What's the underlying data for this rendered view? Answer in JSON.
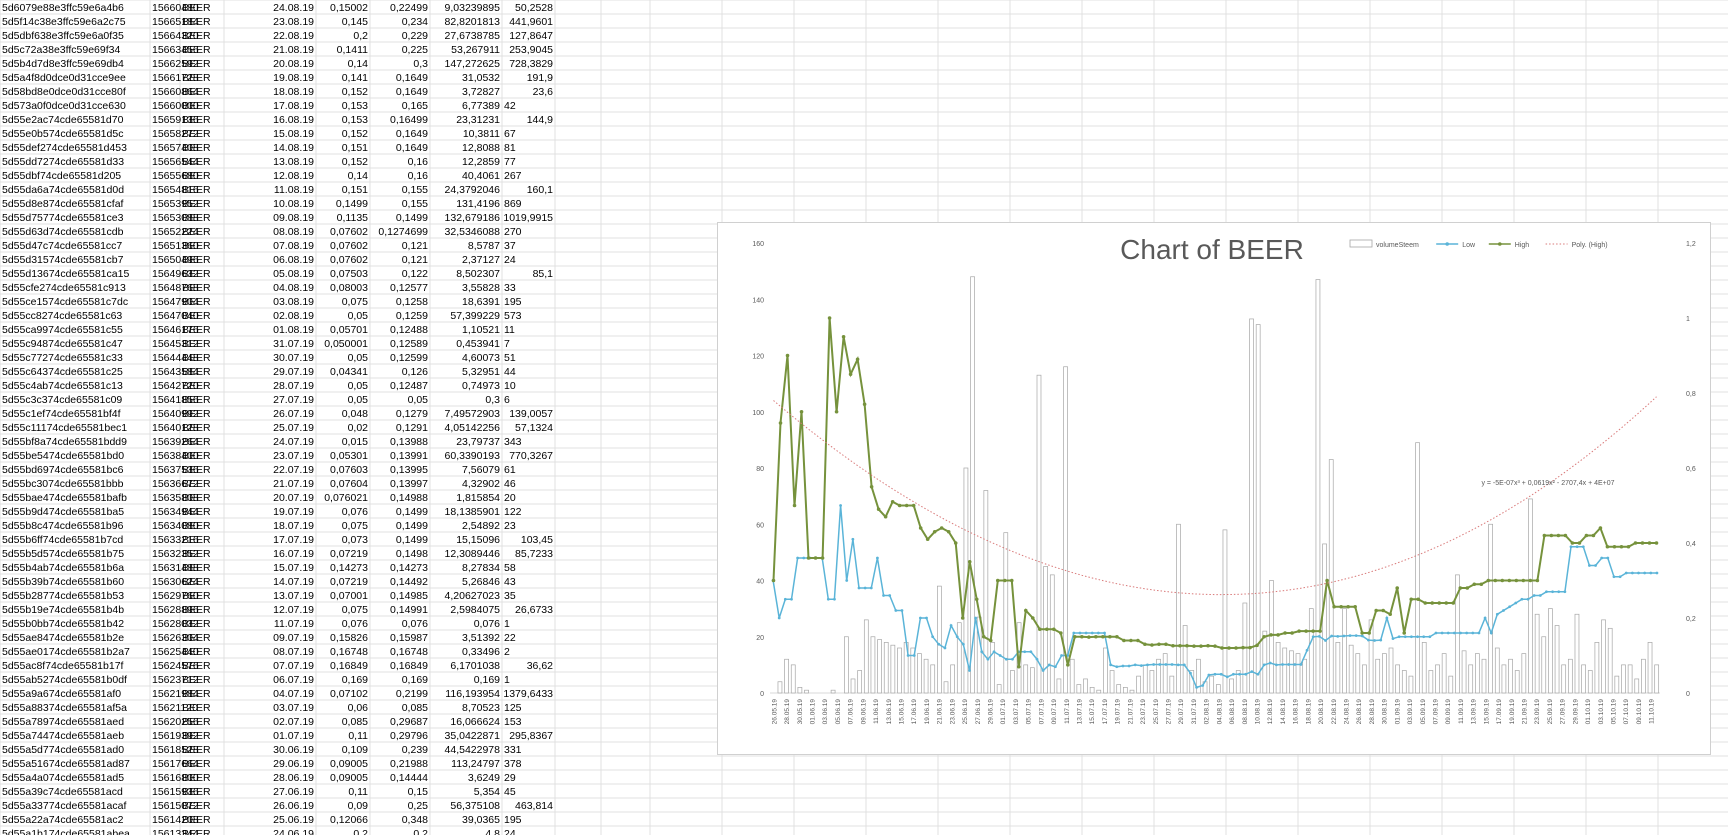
{
  "sheet": {
    "rows": [
      [
        "5d6079e88e3ffc59e6a4b6",
        "15660480",
        "BEER",
        "24.08.19",
        "0,15002",
        "0,22499",
        "9,03239895",
        "50,2528"
      ],
      [
        "5d5f14c38e3ffc59e6a2c75",
        "15665184",
        "BEER",
        "23.08.19",
        "0,145",
        "0,234",
        "82,8201813",
        "441,9601"
      ],
      [
        "5d5dbf638e3ffc59e6a0f35",
        "15664320",
        "BEER",
        "22.08.19",
        "0,2",
        "0,229",
        "27,6738785",
        "127,8647"
      ],
      [
        "5d5c72a38e3ffc59e69f34",
        "15663456",
        "BEER",
        "21.08.19",
        "0,1411",
        "0,225",
        "53,267911",
        "253,9045"
      ],
      [
        "5d5b4d7d8e3ffc59e69db4",
        "15662592",
        "BEER",
        "20.08.19",
        "0,14",
        "0,3",
        "147,272625",
        "728,3829"
      ],
      [
        "5d5a4f8d0dce0d31cce9ee",
        "15661728",
        "BEER",
        "19.08.19",
        "0,141",
        "0,1649",
        "31,0532",
        "191,9"
      ],
      [
        "5d58bd8e0dce0d31cce80f",
        "15660864",
        "BEER",
        "18.08.19",
        "0,152",
        "0,1649",
        "3,72827",
        "23,6"
      ],
      [
        "5d573a0f0dce0d31cce630",
        "15660000",
        "BEER",
        "17.08.19",
        "0,153",
        "0,165",
        "6,77389",
        "42"
      ],
      [
        "5d55e2ac74cde65581d70",
        "15659136",
        "BEER",
        "16.08.19",
        "0,153",
        "0,16499",
        "23,31231",
        "144,9"
      ],
      [
        "5d55e0b574cde65581d5c",
        "15658272",
        "BEER",
        "15.08.19",
        "0,152",
        "0,1649",
        "10,3811",
        "67"
      ],
      [
        "5d55def274cde65581d453",
        "15657408",
        "BEER",
        "14.08.19",
        "0,151",
        "0,1649",
        "12,8088",
        "81"
      ],
      [
        "5d55dd7274cde65581d33",
        "15656544",
        "BEER",
        "13.08.19",
        "0,152",
        "0,16",
        "12,2859",
        "77"
      ],
      [
        "5d55dbf74cde65581d205",
        "15655680",
        "BEER",
        "12.08.19",
        "0,14",
        "0,16",
        "40,4061",
        "267"
      ],
      [
        "5d55da6a74cde65581d0d",
        "15654816",
        "BEER",
        "11.08.19",
        "0,151",
        "0,155",
        "24,3792046",
        "160,1"
      ],
      [
        "5d55d8e874cde65581cfaf",
        "15653952",
        "BEER",
        "10.08.19",
        "0,1499",
        "0,155",
        "131,4196",
        "869"
      ],
      [
        "5d55d75774cde65581ce3",
        "15653088",
        "BEER",
        "09.08.19",
        "0,1135",
        "0,1499",
        "132,679186",
        "1019,9915"
      ],
      [
        "5d55d63d74cde65581cdb",
        "15652224",
        "BEER",
        "08.08.19",
        "0,07602",
        "0,1274699",
        "32,5346088",
        "270"
      ],
      [
        "5d55d47c74cde65581cc7",
        "15651360",
        "BEER",
        "07.08.19",
        "0,07602",
        "0,121",
        "8,5787",
        "37"
      ],
      [
        "5d55d31574cde65581cb7",
        "15650496",
        "BEER",
        "06.08.19",
        "0,07602",
        "0,121",
        "2,37127",
        "24"
      ],
      [
        "5d55d13674cde65581ca15",
        "15649632",
        "BEER",
        "05.08.19",
        "0,07503",
        "0,122",
        "8,502307",
        "85,1"
      ],
      [
        "5d55cfe274cde65581c913",
        "15648768",
        "BEER",
        "04.08.19",
        "0,08003",
        "0,12577",
        "3,55828",
        "33"
      ],
      [
        "5d55ce1574cde65581c7dc",
        "15647904",
        "BEER",
        "03.08.19",
        "0,075",
        "0,1258",
        "18,6391",
        "195"
      ],
      [
        "5d55cc8274cde65581c63",
        "15647040",
        "BEER",
        "02.08.19",
        "0,05",
        "0,1259",
        "57,399229",
        "573"
      ],
      [
        "5d55ca9974cde65581c55",
        "15646176",
        "BEER",
        "01.08.19",
        "0,05701",
        "0,12488",
        "1,10521",
        "11"
      ],
      [
        "5d55c94874cde65581c47",
        "15645312",
        "BEER",
        "31.07.19",
        "0,050001",
        "0,12589",
        "0,453941",
        "7"
      ],
      [
        "5d55c77274cde65581c33",
        "15644448",
        "BEER",
        "30.07.19",
        "0,05",
        "0,12599",
        "4,60073",
        "51"
      ],
      [
        "5d55c64374cde65581c25",
        "15643584",
        "BEER",
        "29.07.19",
        "0,04341",
        "0,126",
        "5,32951",
        "44"
      ],
      [
        "5d55c4ab74cde65581c13",
        "15642720",
        "BEER",
        "28.07.19",
        "0,05",
        "0,12487",
        "0,74973",
        "10"
      ],
      [
        "5d55c3c374cde65581c09",
        "15641856",
        "BEER",
        "27.07.19",
        "0,05",
        "0,05",
        "0,3",
        "6"
      ],
      [
        "5d55c1ef74cde65581bf4f",
        "15640992",
        "BEER",
        "26.07.19",
        "0,048",
        "0,1279",
        "7,49572903",
        "139,0057"
      ],
      [
        "5d55c11174cde65581bec1",
        "15640128",
        "BEER",
        "25.07.19",
        "0,02",
        "0,1291",
        "4,05142256",
        "57,1324"
      ],
      [
        "5d55bf8a74cde65581bdd9",
        "15639264",
        "BEER",
        "24.07.19",
        "0,015",
        "0,13988",
        "23,79737",
        "343"
      ],
      [
        "5d55be5474cde65581bd0",
        "15638400",
        "BEER",
        "23.07.19",
        "0,05301",
        "0,13991",
        "60,3390193",
        "770,3267"
      ],
      [
        "5d55bd6974cde65581bc6",
        "15637536",
        "BEER",
        "22.07.19",
        "0,07603",
        "0,13995",
        "7,56079",
        "61"
      ],
      [
        "5d55bc3074cde65581bbb",
        "15636672",
        "BEER",
        "21.07.19",
        "0,07604",
        "0,13997",
        "4,32902",
        "46"
      ],
      [
        "5d55bae474cde65581bafb",
        "15635808",
        "BEER",
        "20.07.19",
        "0,076021",
        "0,14988",
        "1,815854",
        "20"
      ],
      [
        "5d55b9d474cde65581ba5",
        "15634944",
        "BEER",
        "19.07.19",
        "0,076",
        "0,1499",
        "18,1385901",
        "122"
      ],
      [
        "5d55b8c474cde65581b96",
        "15634080",
        "BEER",
        "18.07.19",
        "0,075",
        "0,1499",
        "2,54892",
        "23"
      ],
      [
        "5d55b6ff74cde65581b7cd",
        "15633216",
        "BEER",
        "17.07.19",
        "0,073",
        "0,1499",
        "15,15096",
        "103,45"
      ],
      [
        "5d55b5d574cde65581b75",
        "15632352",
        "BEER",
        "16.07.19",
        "0,07219",
        "0,1498",
        "12,3089446",
        "85,7233"
      ],
      [
        "5d55b4ab74cde65581b6a",
        "15631488",
        "BEER",
        "15.07.19",
        "0,14273",
        "0,14273",
        "8,27834",
        "58"
      ],
      [
        "5d55b39b74cde65581b60",
        "15630624",
        "BEER",
        "14.07.19",
        "0,07219",
        "0,14492",
        "5,26846",
        "43"
      ],
      [
        "5d55b28774cde65581b53",
        "15629760",
        "BEER",
        "13.07.19",
        "0,07001",
        "0,14985",
        "4,20627023",
        "35"
      ],
      [
        "5d55b19e74cde65581b4b",
        "15628896",
        "BEER",
        "12.07.19",
        "0,075",
        "0,14991",
        "2,5984075",
        "26,6733"
      ],
      [
        "5d55b0bb74cde65581b42",
        "15628032",
        "BEER",
        "11.07.19",
        "0,076",
        "0,076",
        "0,076",
        "1"
      ],
      [
        "5d55ae8474cde65581b2e",
        "15626304",
        "BEER",
        "09.07.19",
        "0,15826",
        "0,15987",
        "3,51392",
        "22"
      ],
      [
        "5d55ae0174cde65581b2a7",
        "15625440",
        "BEER",
        "08.07.19",
        "0,16748",
        "0,16748",
        "0,33496",
        "2"
      ],
      [
        "5d55ac8f74cde65581b17f",
        "15624576",
        "BEER",
        "07.07.19",
        "0,16849",
        "0,16849",
        "6,1701038",
        "36,62"
      ],
      [
        "5d55ab5274cde65581b0df",
        "15623712",
        "BEER",
        "06.07.19",
        "0,169",
        "0,169",
        "0,169",
        "1"
      ],
      [
        "5d55a9a674cde65581af0",
        "15621984",
        "BEER",
        "04.07.19",
        "0,07102",
        "0,2199",
        "116,193954",
        "1379,6433"
      ],
      [
        "5d55a88374cde65581af5a",
        "15621120",
        "BEER",
        "03.07.19",
        "0,06",
        "0,085",
        "8,70523",
        "125"
      ],
      [
        "5d55a78974cde65581aed",
        "15620256",
        "BEER",
        "02.07.19",
        "0,085",
        "0,29687",
        "16,066624",
        "153"
      ],
      [
        "5d55a74474cde65581aeb",
        "15619392",
        "BEER",
        "01.07.19",
        "0,11",
        "0,29796",
        "35,0422871",
        "295,8367"
      ],
      [
        "5d55a5d774cde65581ad0",
        "15618528",
        "BEER",
        "30.06.19",
        "0,109",
        "0,239",
        "44,5422978",
        "331"
      ],
      [
        "5d55a51674cde65581ad87",
        "15617664",
        "BEER",
        "29.06.19",
        "0,09005",
        "0,21988",
        "113,24797",
        "378"
      ],
      [
        "5d55a4a074cde65581ad5",
        "15616800",
        "BEER",
        "28.06.19",
        "0,09005",
        "0,14444",
        "3,6249",
        "29"
      ],
      [
        "5d55a39c74cde65581acd",
        "15615936",
        "BEER",
        "27.06.19",
        "0,11",
        "0,15",
        "5,354",
        "45"
      ],
      [
        "5d55a33774cde65581acaf",
        "15615072",
        "BEER",
        "26.06.19",
        "0,09",
        "0,25",
        "56,375108",
        "463,814"
      ],
      [
        "5d55a22a74cde65581ac2",
        "15614208",
        "BEER",
        "25.06.19",
        "0,12066",
        "0,348",
        "39,0365",
        "195"
      ],
      [
        "5d55a1b174cde65581abea",
        "15613344",
        "BEER",
        "24.06.19",
        "0,2",
        "0,2",
        "4,8",
        "24"
      ]
    ]
  },
  "chart_data": {
    "type": "bar",
    "title": "Chart of BEER",
    "legend": [
      "volumeSteem",
      "Low",
      "High",
      "Poly. (High)"
    ],
    "legend_position": "top-right",
    "trendline_equation": "y = -5E-07x³ + 0,0619x² - 2707,4x + 4E+07",
    "y_left": {
      "min": 0,
      "max": 160,
      "ticks": [
        "0",
        "20",
        "40",
        "60",
        "80",
        "100",
        "120",
        "140",
        "160"
      ]
    },
    "y_right": {
      "min": 0,
      "max": 1.2,
      "ticks": [
        "0",
        "0,2",
        "0,4",
        "0,6",
        "0,8",
        "1",
        "1,2"
      ]
    },
    "x_ticks": [
      "26.05.19",
      "28.05.19",
      "30.05.19",
      "01.06.19",
      "03.06.19",
      "05.06.19",
      "07.06.19",
      "09.06.19",
      "11.06.19",
      "13.06.19",
      "15.06.19",
      "17.06.19",
      "19.06.19",
      "21.06.19",
      "23.06.19",
      "25.06.19",
      "27.06.19",
      "29.06.19",
      "01.07.19",
      "03.07.19",
      "05.07.19",
      "07.07.19",
      "09.07.19",
      "11.07.19",
      "13.07.19",
      "15.07.19",
      "17.07.19",
      "19.07.19",
      "21.07.19",
      "23.07.19",
      "25.07.19",
      "27.07.19",
      "29.07.19",
      "31.07.19",
      "02.08.19",
      "04.08.19",
      "06.08.19",
      "08.08.19",
      "10.08.19",
      "12.08.19",
      "14.08.19",
      "16.08.19",
      "18.08.19",
      "20.08.19",
      "22.08.19",
      "24.08.19",
      "26.08.19",
      "28.08.19",
      "30.08.19",
      "01.09.19",
      "03.09.19",
      "05.09.19",
      "07.09.19",
      "09.09.19",
      "11.09.19",
      "13.09.19",
      "15.09.19",
      "17.09.19",
      "19.09.19",
      "21.09.19",
      "23.09.19",
      "25.09.19",
      "27.09.19",
      "29.09.19",
      "01.10.19",
      "03.10.19",
      "05.10.19",
      "07.10.19",
      "09.10.19",
      "11.10.19"
    ],
    "series": [
      {
        "name": "volumeSteem",
        "axis": "left",
        "color": "#a6a6a6",
        "values": [
          0,
          4,
          12,
          10,
          2,
          1,
          0,
          0,
          0,
          1,
          0,
          20,
          5,
          8,
          26,
          20,
          19,
          18,
          17,
          16,
          18,
          16,
          14,
          12,
          10,
          38,
          4,
          10,
          25,
          80,
          148,
          27,
          72,
          18,
          3,
          57,
          8,
          25,
          10,
          9,
          113,
          45,
          42,
          5,
          116,
          12,
          3,
          5,
          2,
          1,
          16,
          8,
          3,
          2,
          1,
          6,
          10,
          8,
          12,
          14,
          6,
          60,
          24,
          8,
          12,
          4,
          6,
          3,
          58,
          5,
          8,
          32,
          133,
          131,
          22,
          40,
          18,
          16,
          15,
          14,
          12,
          30,
          147,
          53,
          83,
          18,
          30,
          17,
          14,
          10,
          26,
          12,
          14,
          16,
          10,
          8,
          6,
          89,
          18,
          8,
          10,
          14,
          6,
          42,
          15,
          10,
          14,
          12,
          60,
          16,
          10,
          12,
          8,
          14,
          69,
          28,
          20,
          30,
          24,
          10,
          12,
          28,
          10,
          8,
          18,
          26,
          23,
          6,
          10,
          10,
          5,
          12,
          18,
          10
        ]
      },
      {
        "name": "Low",
        "axis": "right",
        "color": "#5ab4d8",
        "values": [
          0.3,
          0.2,
          0.25,
          0.25,
          0.36,
          0.36,
          0.36,
          0.36,
          0.36,
          0.25,
          0.25,
          0.5,
          0.3,
          0.41,
          0.28,
          0.28,
          0.28,
          0.36,
          0.26,
          0.26,
          0.22,
          0.22,
          0.1,
          0.1,
          0.2,
          0.2,
          0.15,
          0.13,
          0.12,
          0.18,
          0.15,
          0.13,
          0.06,
          0.2,
          0.11,
          0.09,
          0.11,
          0.1,
          0.09,
          0.09,
          0.11,
          0.11,
          0.11,
          0.09,
          0.06,
          0.075,
          0.07,
          0.1,
          0.1,
          0.16,
          0.16,
          0.16,
          0.16,
          0.16,
          0.16,
          0.075,
          0.07,
          0.072,
          0.072,
          0.075,
          0.073,
          0.075,
          0.076,
          0.076,
          0.076,
          0.076,
          0.075,
          0.075,
          0.053,
          0.015,
          0.02,
          0.048,
          0.05,
          0.05,
          0.043,
          0.05,
          0.05,
          0.05,
          0.057,
          0.05,
          0.075,
          0.08,
          0.075,
          0.076,
          0.076,
          0.076,
          0.076,
          0.114,
          0.15,
          0.151,
          0.14,
          0.152,
          0.151,
          0.152,
          0.153,
          0.153,
          0.152,
          0.141,
          0.14,
          0.141,
          0.2,
          0.145,
          0.15,
          0.15,
          0.15,
          0.15,
          0.15,
          0.15,
          0.16,
          0.16,
          0.16,
          0.16,
          0.16,
          0.16,
          0.16,
          0.16,
          0.2,
          0.16,
          0.21,
          0.22,
          0.23,
          0.24,
          0.25,
          0.25,
          0.26,
          0.26,
          0.27,
          0.27,
          0.27,
          0.27,
          0.39,
          0.39,
          0.39,
          0.34,
          0.34,
          0.36,
          0.36,
          0.31,
          0.31,
          0.32,
          0.32,
          0.32,
          0.32,
          0.32,
          0.32
        ]
      },
      {
        "name": "High",
        "axis": "right",
        "color": "#76923c",
        "values": [
          0.3,
          0.72,
          0.9,
          0.5,
          0.75,
          0.36,
          0.36,
          0.36,
          1.0,
          0.75,
          0.95,
          0.85,
          0.89,
          0.77,
          0.55,
          0.49,
          0.47,
          0.51,
          0.5,
          0.5,
          0.5,
          0.44,
          0.41,
          0.43,
          0.44,
          0.43,
          0.4,
          0.2,
          0.35,
          0.25,
          0.15,
          0.14,
          0.3,
          0.3,
          0.3,
          0.07,
          0.22,
          0.2,
          0.17,
          0.17,
          0.17,
          0.16,
          0.075,
          0.15,
          0.15,
          0.149,
          0.15,
          0.15,
          0.15,
          0.15,
          0.14,
          0.14,
          0.14,
          0.13,
          0.128,
          0.13,
          0.13,
          0.126,
          0.126,
          0.126,
          0.125,
          0.125,
          0.126,
          0.125,
          0.12,
          0.12,
          0.12,
          0.121,
          0.121,
          0.127,
          0.15,
          0.155,
          0.155,
          0.16,
          0.16,
          0.165,
          0.165,
          0.165,
          0.165,
          0.3,
          0.23,
          0.23,
          0.23,
          0.23,
          0.16,
          0.16,
          0.22,
          0.22,
          0.21,
          0.28,
          0.16,
          0.25,
          0.25,
          0.24,
          0.24,
          0.24,
          0.24,
          0.24,
          0.28,
          0.28,
          0.29,
          0.29,
          0.3,
          0.3,
          0.3,
          0.3,
          0.3,
          0.3,
          0.3,
          0.3,
          0.42,
          0.42,
          0.42,
          0.42,
          0.4,
          0.4,
          0.42,
          0.42,
          0.44,
          0.39,
          0.39,
          0.39,
          0.39,
          0.4,
          0.4,
          0.4,
          0.4
        ]
      }
    ]
  }
}
